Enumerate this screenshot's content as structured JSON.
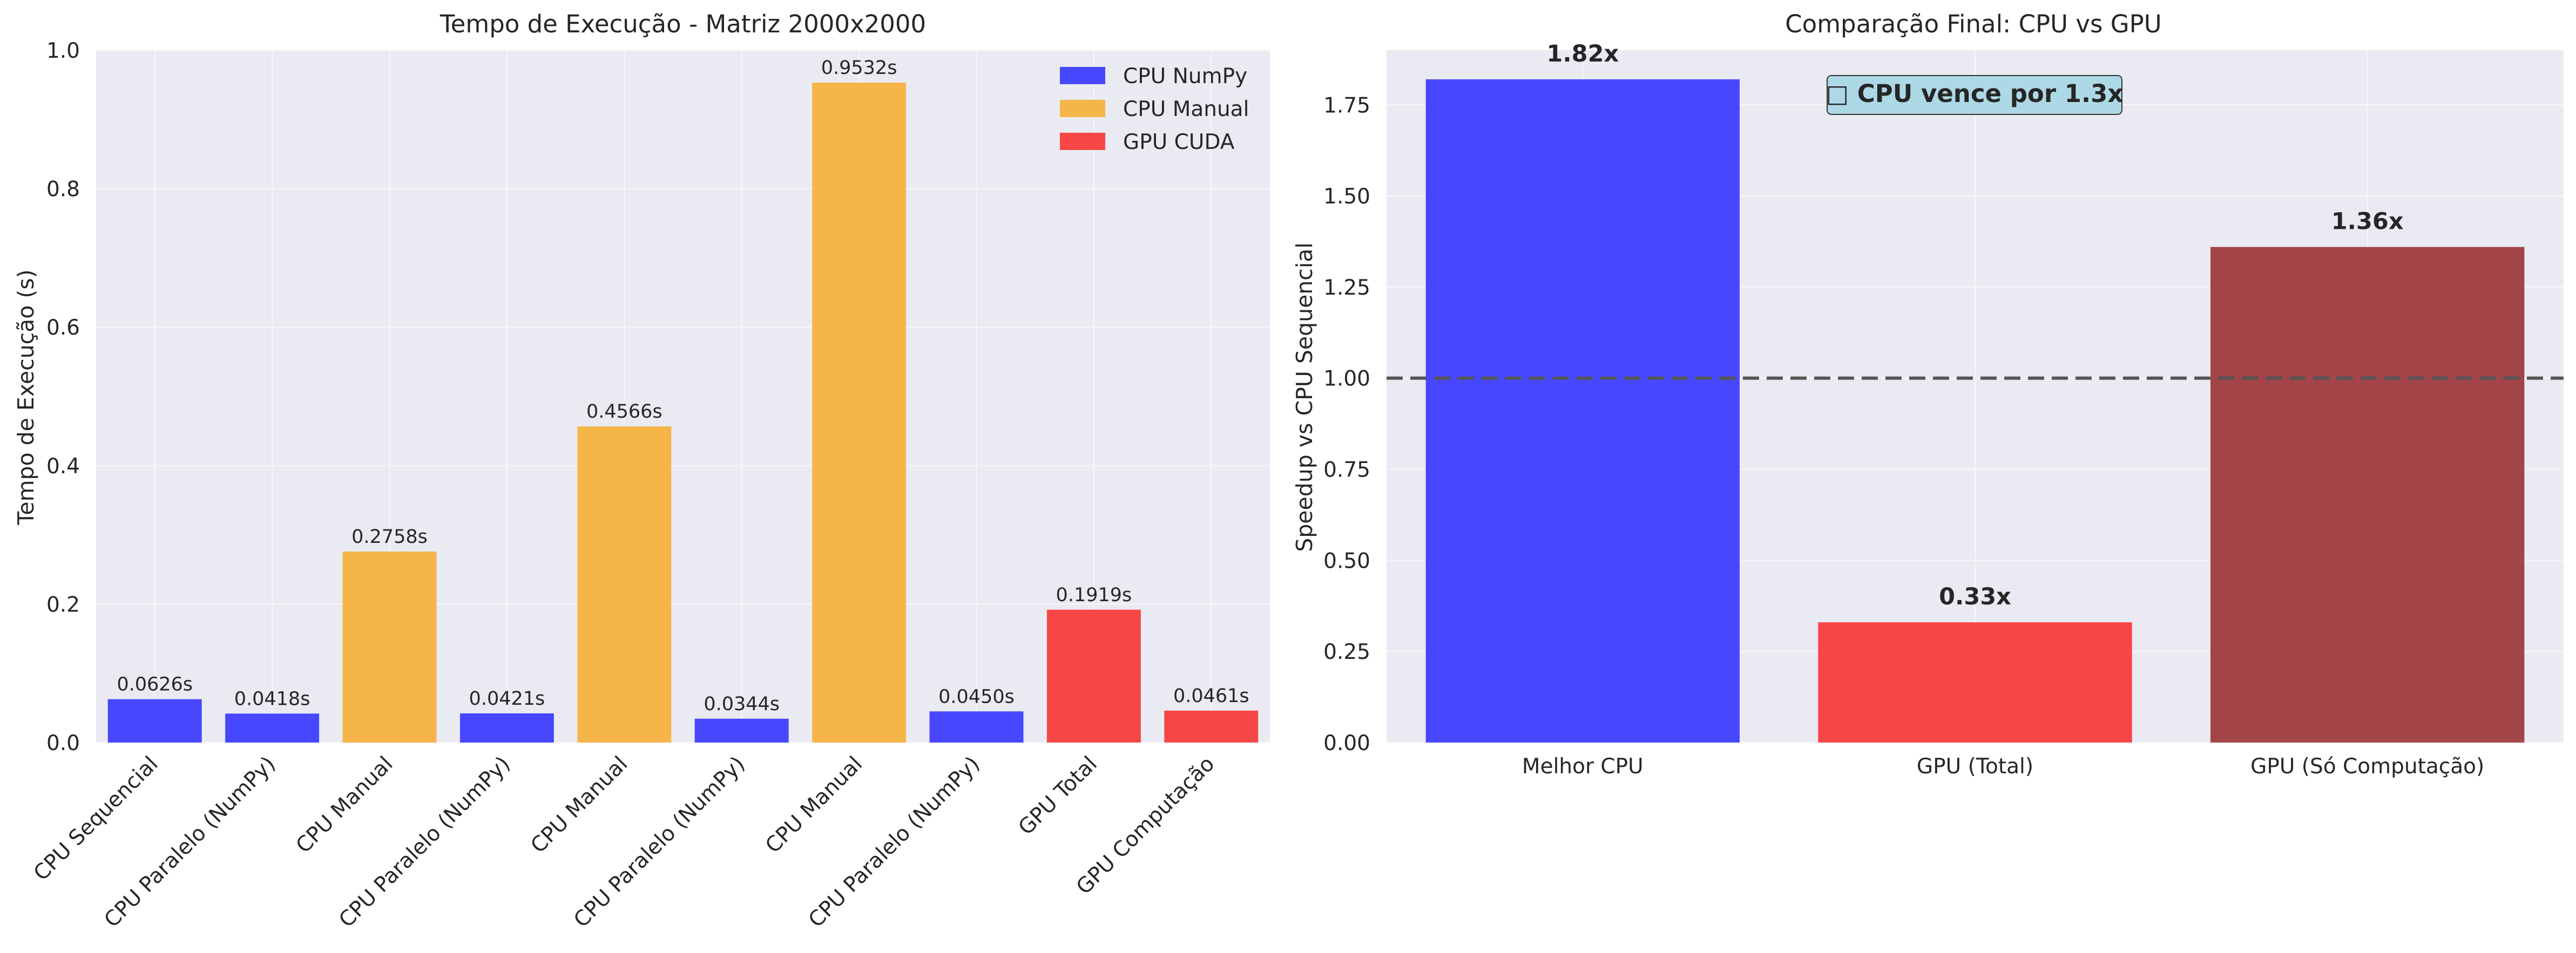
{
  "chart_data": [
    {
      "type": "bar",
      "title": "Tempo de Execução - Matriz 2000x2000",
      "xlabel": "",
      "ylabel": "Tempo de Execução (s)",
      "ylim": [
        0,
        1.0
      ],
      "yticks": [
        "0.0",
        "0.2",
        "0.4",
        "0.6",
        "0.8",
        "1.0"
      ],
      "grid": true,
      "legend_position": "top-right",
      "categories": [
        "CPU Sequencial",
        "CPU Paralelo (NumPy)",
        "CPU Manual",
        "CPU Paralelo (NumPy)",
        "CPU Manual",
        "CPU Paralelo (NumPy)",
        "CPU Manual",
        "CPU Paralelo (NumPy)",
        "GPU Total",
        "GPU Computação"
      ],
      "values": [
        0.0626,
        0.0418,
        0.2758,
        0.0421,
        0.4566,
        0.0344,
        0.9532,
        0.045,
        0.1919,
        0.0461
      ],
      "value_labels": [
        "0.0626s",
        "0.0418s",
        "0.2758s",
        "0.0421s",
        "0.4566s",
        "0.0344s",
        "0.9532s",
        "0.0450s",
        "0.1919s",
        "0.0461s"
      ],
      "bar_groups": [
        "CPU NumPy",
        "CPU NumPy",
        "CPU Manual",
        "CPU NumPy",
        "CPU Manual",
        "CPU NumPy",
        "CPU Manual",
        "CPU NumPy",
        "GPU CUDA",
        "GPU CUDA"
      ],
      "legend": [
        {
          "name": "CPU NumPy",
          "color": "#4747ff"
        },
        {
          "name": "CPU Manual",
          "color": "#f6b548"
        },
        {
          "name": "GPU CUDA",
          "color": "#f74646"
        }
      ]
    },
    {
      "type": "bar",
      "title": "Comparação Final: CPU vs GPU",
      "xlabel": "",
      "ylabel": "Speedup vs CPU Sequencial",
      "ylim": [
        0,
        1.9
      ],
      "yticks": [
        "0.00",
        "0.25",
        "0.50",
        "0.75",
        "1.00",
        "1.25",
        "1.50",
        "1.75"
      ],
      "grid": true,
      "categories": [
        "Melhor CPU",
        "GPU (Total)",
        "GPU (Só Computação)"
      ],
      "values": [
        1.82,
        0.33,
        1.36
      ],
      "value_labels": [
        "1.82x",
        "0.33x",
        "1.36x"
      ],
      "colors": [
        "#4747ff",
        "#f74646",
        "#a34548"
      ],
      "reference_line": 1.0,
      "annotation": "□ CPU vence por 1.3x"
    }
  ],
  "style": {
    "plot_background": "#eaeaf2",
    "grid_color": "#f7f7fb",
    "reference_line_color": "#555555",
    "annotation_background": "#add8e6"
  }
}
